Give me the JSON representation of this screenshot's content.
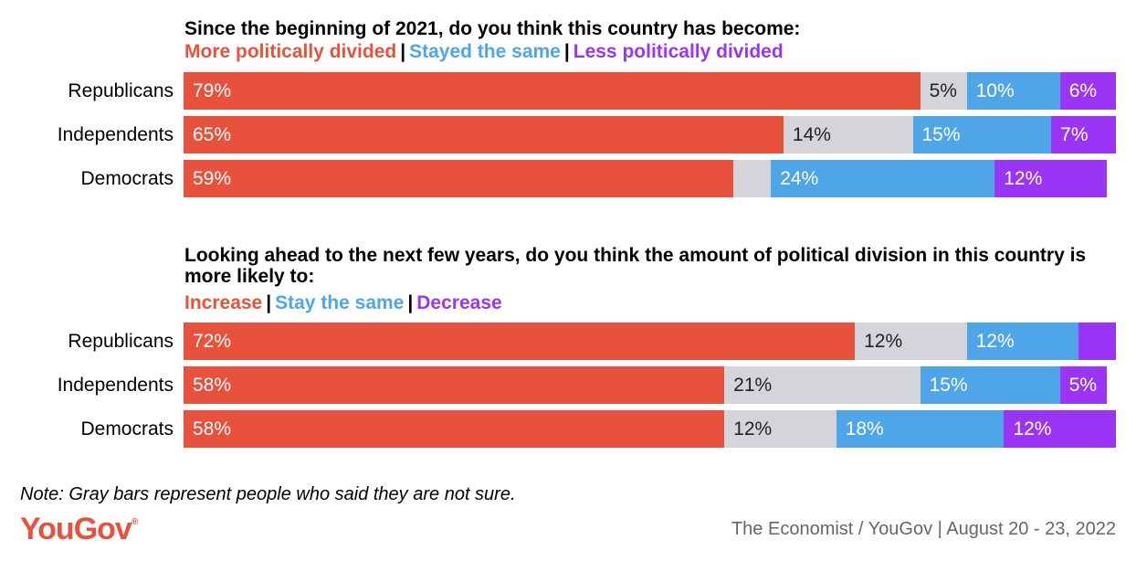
{
  "colors": {
    "more": "#e8523c",
    "same": "#4ea6e8",
    "less": "#9a35f5",
    "unsure": "#d3d5da"
  },
  "chart_data": [
    {
      "type": "bar",
      "orientation": "horizontal",
      "stacked": true,
      "title": "Since the beginning of 2021, do you think this country has become:",
      "categories": [
        "Republicans",
        "Independents",
        "Democrats"
      ],
      "series": [
        {
          "name": "More politically divided",
          "color_key": "more",
          "values": [
            79,
            65,
            59
          ],
          "labels": [
            "79%",
            "65%",
            "59%"
          ]
        },
        {
          "name": "Not sure",
          "color_key": "unsure",
          "values": [
            5,
            14,
            4
          ],
          "labels": [
            "5%",
            "14%",
            ""
          ]
        },
        {
          "name": "Stayed the same",
          "color_key": "same",
          "values": [
            10,
            15,
            24
          ],
          "labels": [
            "10%",
            "15%",
            "24%"
          ]
        },
        {
          "name": "Less politically divided",
          "color_key": "less",
          "values": [
            6,
            7,
            12
          ],
          "labels": [
            "6%",
            "7%",
            "12%"
          ]
        }
      ],
      "legend": [
        {
          "label": "More politically divided",
          "color_key": "more"
        },
        {
          "label": "Stayed the same",
          "color_key": "same"
        },
        {
          "label": "Less politically divided",
          "color_key": "less"
        }
      ],
      "xlim": [
        0,
        100
      ]
    },
    {
      "type": "bar",
      "orientation": "horizontal",
      "stacked": true,
      "title": "Looking ahead to the next few years, do you think the amount of political division in this country is more likely to:",
      "categories": [
        "Republicans",
        "Independents",
        "Democrats"
      ],
      "series": [
        {
          "name": "Increase",
          "color_key": "more",
          "values": [
            72,
            58,
            58
          ],
          "labels": [
            "72%",
            "58%",
            "58%"
          ]
        },
        {
          "name": "Not sure",
          "color_key": "unsure",
          "values": [
            12,
            21,
            12
          ],
          "labels": [
            "12%",
            "21%",
            "12%"
          ]
        },
        {
          "name": "Stay the same",
          "color_key": "same",
          "values": [
            12,
            15,
            18
          ],
          "labels": [
            "12%",
            "15%",
            "18%"
          ]
        },
        {
          "name": "Decrease",
          "color_key": "less",
          "values": [
            4,
            5,
            12
          ],
          "labels": [
            "",
            "5%",
            "12%"
          ]
        }
      ],
      "legend": [
        {
          "label": "Increase",
          "color_key": "more"
        },
        {
          "label": "Stay the same",
          "color_key": "same"
        },
        {
          "label": "Decrease",
          "color_key": "less"
        }
      ],
      "xlim": [
        0,
        100
      ]
    }
  ],
  "footer": {
    "note": "Note: Gray bars represent people who said they are not sure.",
    "logo": "YouGov",
    "source": "The Economist / YouGov | August 20 - 23, 2022"
  }
}
